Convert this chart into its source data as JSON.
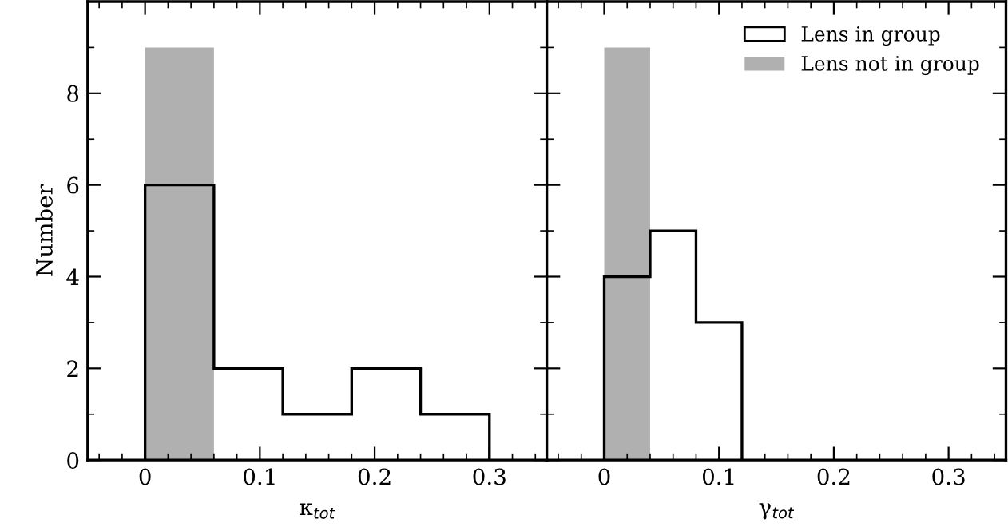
{
  "chart_data": [
    {
      "type": "histogram",
      "xlabel": "κ$_{tot}$",
      "ylabel": "Number",
      "bins": [
        0,
        0.06,
        0.12,
        0.18,
        0.24,
        0.3
      ],
      "xlim": [
        -0.05,
        0.35
      ],
      "xticks": [
        0,
        0.1,
        0.2,
        0.3
      ],
      "ylim": [
        0,
        10
      ],
      "yticks": [
        0,
        2,
        4,
        6,
        8
      ],
      "grid": false,
      "legend": "top right",
      "series": [
        {
          "name": "Lens not in group",
          "color": "#b0b0b0",
          "values": [
            9,
            0,
            0,
            0,
            0
          ]
        },
        {
          "name": "Lens in group",
          "color": "#000000",
          "values": [
            6,
            2,
            1,
            2,
            1
          ],
          "line_style": "solid"
        }
      ]
    },
    {
      "type": "histogram",
      "xlabel": "γ$_{tot}$",
      "bins": [
        0,
        0.04,
        0.08,
        0.12
      ],
      "xlim": [
        -0.05,
        0.35
      ],
      "xticks": [
        0,
        0.1,
        0.2,
        0.3
      ],
      "ylim": [
        0,
        10
      ],
      "yticks": [
        0,
        2,
        4,
        6,
        8
      ],
      "grid": false,
      "tick_labels": "x",
      "series": [
        {
          "color": "#b0b0b0",
          "values": [
            9,
            0,
            0
          ]
        },
        {
          "color": "#000000",
          "values": [
            4,
            5,
            3
          ],
          "line_style": "solid"
        }
      ]
    }
  ]
}
